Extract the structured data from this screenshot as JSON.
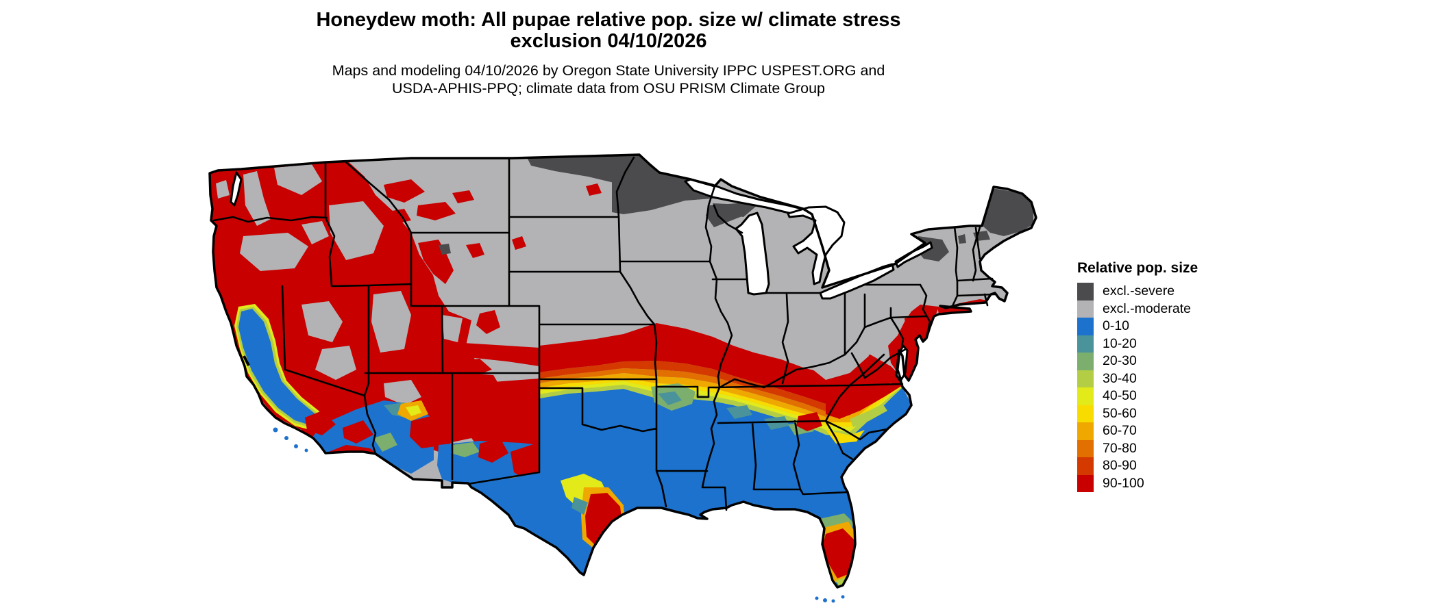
{
  "header": {
    "title_line1": "Honeydew moth: All pupae relative pop. size w/ climate stress",
    "title_line2": "exclusion 04/10/2026",
    "subtitle_line1": "Maps and modeling 04/10/2026 by Oregon State University IPPC USPEST.ORG and",
    "subtitle_line2": "USDA-APHIS-PPQ; climate data from OSU PRISM Climate Group"
  },
  "legend": {
    "title": "Relative pop. size",
    "items": [
      {
        "label": "excl.-severe",
        "key": "excl_severe"
      },
      {
        "label": "excl.-moderate",
        "key": "excl_moderate"
      },
      {
        "label": "0-10",
        "key": "c0_10"
      },
      {
        "label": "10-20",
        "key": "c10_20"
      },
      {
        "label": "20-30",
        "key": "c20_30"
      },
      {
        "label": "30-40",
        "key": "c30_40"
      },
      {
        "label": "40-50",
        "key": "c40_50"
      },
      {
        "label": "50-60",
        "key": "c50_60"
      },
      {
        "label": "60-70",
        "key": "c60_70"
      },
      {
        "label": "70-80",
        "key": "c70_80"
      },
      {
        "label": "80-90",
        "key": "c80_90"
      },
      {
        "label": "90-100",
        "key": "c90_100"
      }
    ]
  },
  "map": {
    "region": "Continental United States",
    "palette": {
      "excl_severe": "#4B4B4D",
      "excl_moderate": "#B3B3B5",
      "c0_10": "#1C72CC",
      "c10_20": "#4A939B",
      "c20_30": "#7CAE6E",
      "c30_40": "#B3CE44",
      "c40_50": "#E2EA1A",
      "c50_60": "#F8DC00",
      "c60_70": "#EFA800",
      "c70_80": "#E17000",
      "c80_90": "#D43900",
      "c90_100": "#C80000",
      "border": "#000000",
      "water": "#FFFFFF"
    }
  }
}
